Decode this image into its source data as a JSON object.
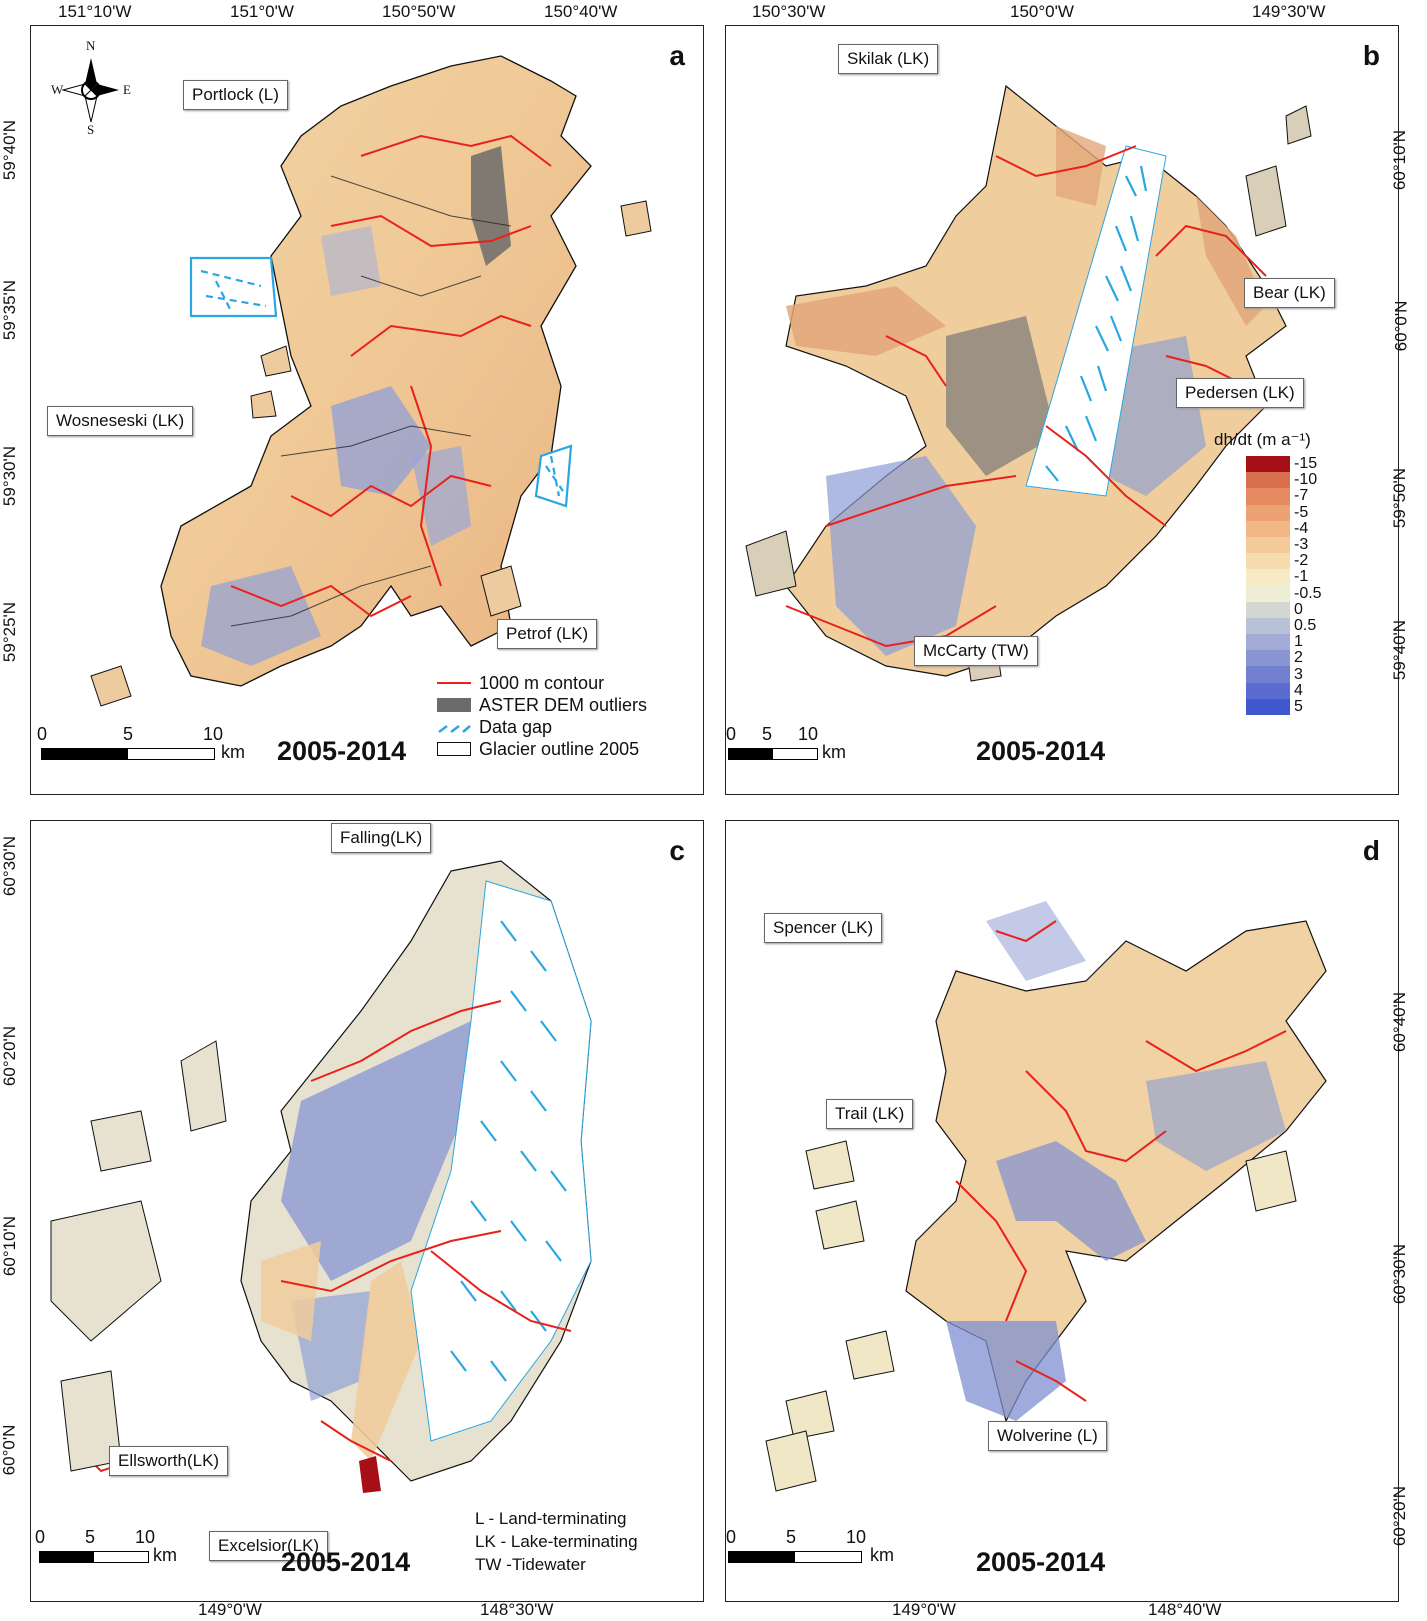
{
  "panels": {
    "a": {
      "label": "a",
      "period": "2005-2014",
      "top_ticks": [
        "151°10'W",
        "151°0'W",
        "150°50'W",
        "150°40'W"
      ],
      "left_ticks": [
        "59°40'N",
        "59°35'N",
        "59°30'N",
        "59°25'N"
      ],
      "callouts": [
        "Portlock (L)",
        "Wosneseski (LK)",
        "Petrof (LK)"
      ],
      "scale": {
        "ticks": [
          "0",
          "5",
          "10"
        ],
        "unit": "km"
      },
      "compass": {
        "n": "N",
        "s": "S",
        "e": "E",
        "w": "W"
      },
      "legend": [
        {
          "label": "1000 m contour",
          "symbol": "red-line"
        },
        {
          "label": "ASTER DEM outliers",
          "symbol": "gray-fill"
        },
        {
          "label": "Data gap",
          "symbol": "blue-dash"
        },
        {
          "label": "Glacier outline 2005",
          "symbol": "black-outline"
        }
      ]
    },
    "b": {
      "label": "b",
      "period": "2005-2014",
      "top_ticks": [
        "150°30'W",
        "150°0'W",
        "149°30'W"
      ],
      "right_ticks": [
        "60°10'N",
        "60°0'N",
        "59°50'N",
        "59°40'N"
      ],
      "callouts": [
        "Skilak (LK)",
        "Bear (LK)",
        "Pedersen (LK)",
        "McCarty (TW)"
      ],
      "scale": {
        "ticks": [
          "0",
          "5",
          "10"
        ],
        "unit": "km"
      },
      "colorbar": {
        "title": "dh/dt (m a⁻¹)",
        "labels": [
          "-15",
          "-10",
          "-7",
          "-5",
          "-4",
          "-3",
          "-2",
          "-1",
          "-0.5",
          "0",
          "0.5",
          "1",
          "2",
          "3",
          "4",
          "5"
        ],
        "colors": [
          "#a50f15",
          "#d9704f",
          "#e68a62",
          "#eda274",
          "#f1b886",
          "#f3ca9a",
          "#f5dcae",
          "#f6ebc4",
          "#eeeed6",
          "#d4d6d4",
          "#b9c1d6",
          "#a1abd6",
          "#8a95d4",
          "#7280d2",
          "#5a6ccf",
          "#3f58cc"
        ]
      }
    },
    "c": {
      "label": "c",
      "period": "2005-2014",
      "bottom_ticks": [
        "149°0'W",
        "148°30'W"
      ],
      "left_ticks": [
        "60°30'N",
        "60°20'N",
        "60°10'N",
        "60°0'N"
      ],
      "callouts": [
        "Falling(LK)",
        "Ellsworth(LK)",
        "Excelsior(LK)"
      ],
      "scale": {
        "ticks": [
          "0",
          "5",
          "10"
        ],
        "unit": "km"
      },
      "key_lines": [
        "L - Land-terminating",
        "LK - Lake-terminating",
        "TW -Tidewater"
      ]
    },
    "d": {
      "label": "d",
      "period": "2005-2014",
      "bottom_ticks": [
        "149°0'W",
        "148°40'W"
      ],
      "right_ticks": [
        "60°40'N",
        "60°30'N",
        "60°20'N"
      ],
      "callouts": [
        "Spencer (LK)",
        "Trail (LK)",
        "Wolverine (L)"
      ],
      "scale": {
        "ticks": [
          "0",
          "5",
          "10"
        ],
        "unit": "km"
      }
    }
  },
  "colors": {
    "contour": "#e8221b",
    "outlier": "#6b6b6b",
    "data_gap": "#2aa6e0",
    "outline": "#111111",
    "thinning": "#f1c99a",
    "thickening": "#7d8fd3"
  }
}
